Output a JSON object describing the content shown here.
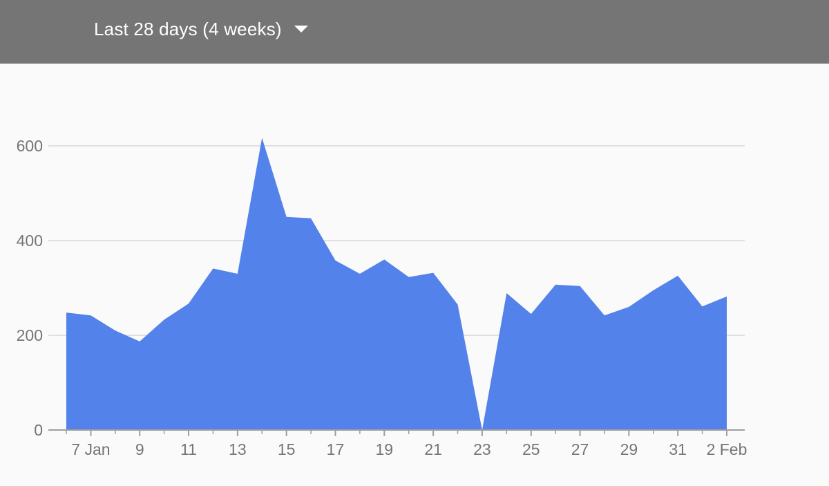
{
  "header": {
    "range_label": "Last 28 days (4 weeks)",
    "dropdown_icon": "caret-down-icon"
  },
  "colors": {
    "header_bg": "#757575",
    "series_fill": "#5282ea",
    "gridline": "#e0e0e0",
    "axis_text": "#757575"
  },
  "chart_data": {
    "type": "area",
    "x": [
      "2025-01-06",
      "2025-01-07",
      "2025-01-08",
      "2025-01-09",
      "2025-01-10",
      "2025-01-11",
      "2025-01-12",
      "2025-01-13",
      "2025-01-14",
      "2025-01-15",
      "2025-01-16",
      "2025-01-17",
      "2025-01-18",
      "2025-01-19",
      "2025-01-20",
      "2025-01-21",
      "2025-01-22",
      "2025-01-23",
      "2025-01-24",
      "2025-01-25",
      "2025-01-26",
      "2025-01-27",
      "2025-01-28",
      "2025-01-29",
      "2025-01-30",
      "2025-01-31",
      "2025-02-01",
      "2025-02-02"
    ],
    "series": [
      {
        "values": [
          248,
          242,
          210,
          187,
          233,
          267,
          341,
          330,
          617,
          450,
          447,
          358,
          330,
          360,
          323,
          332,
          265,
          0,
          289,
          245,
          307,
          304,
          242,
          260,
          295,
          326,
          261,
          282
        ]
      }
    ],
    "x_tick_labels": [
      "7 Jan",
      "9",
      "11",
      "13",
      "15",
      "17",
      "19",
      "21",
      "23",
      "25",
      "27",
      "29",
      "31",
      "2 Feb"
    ],
    "y_tick_labels": [
      "0",
      "200",
      "400",
      "600"
    ],
    "ylim": [
      0,
      720
    ],
    "grid": true,
    "legend": "none",
    "title": "",
    "xlabel": "",
    "ylabel": ""
  }
}
